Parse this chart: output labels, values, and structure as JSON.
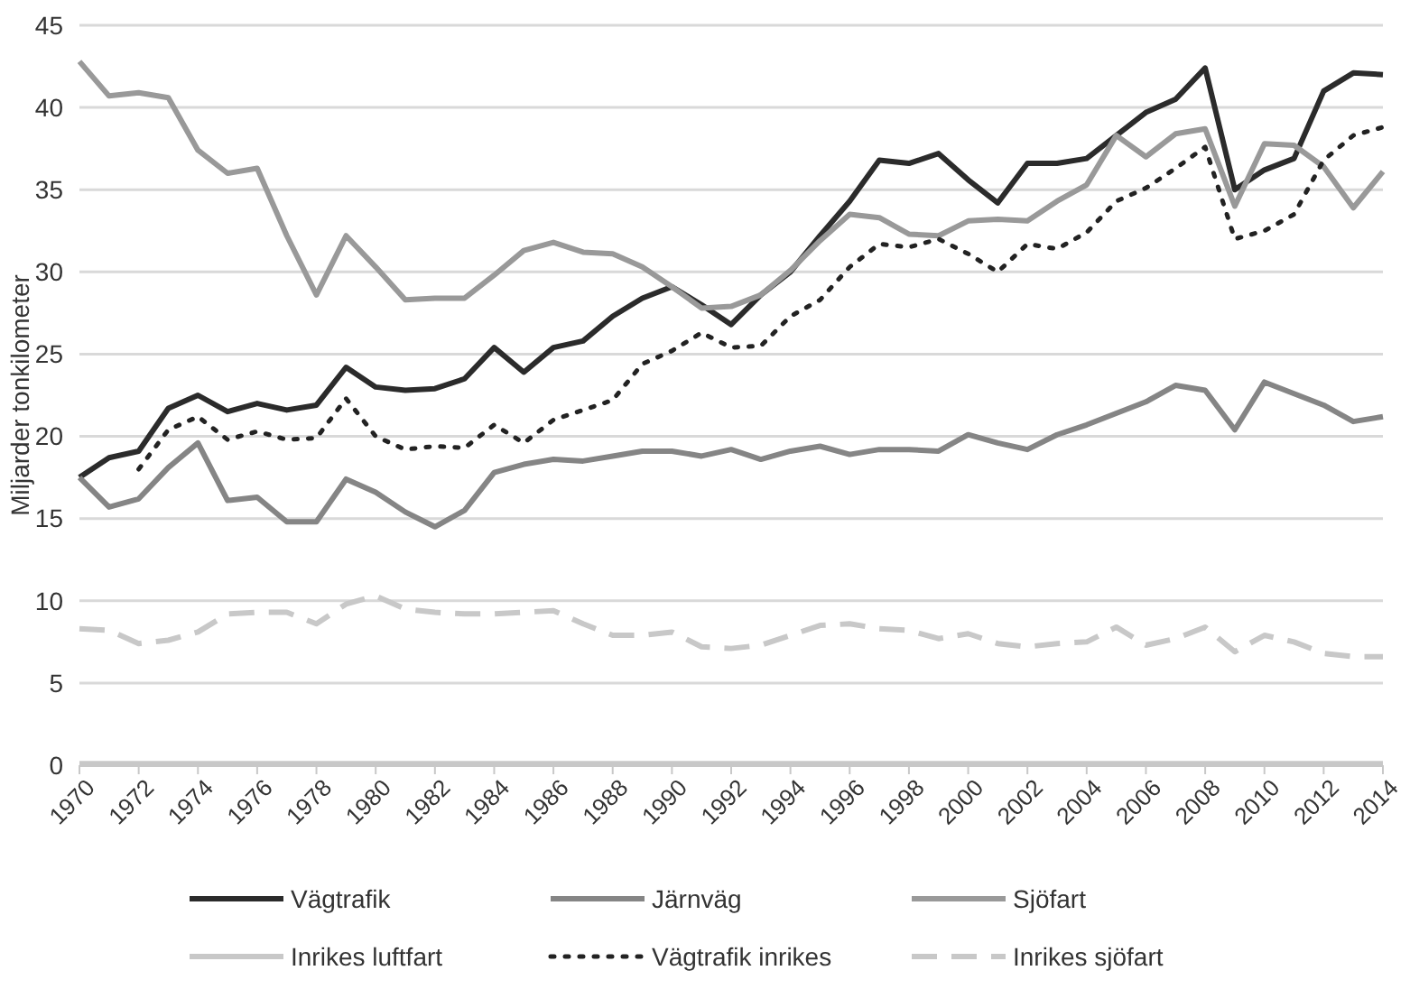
{
  "chart_data": {
    "type": "line",
    "ylabel": "Miljarder tonkilometer",
    "x": [
      1970,
      1971,
      1972,
      1973,
      1974,
      1975,
      1976,
      1977,
      1978,
      1979,
      1980,
      1981,
      1982,
      1983,
      1984,
      1985,
      1986,
      1987,
      1988,
      1989,
      1990,
      1991,
      1992,
      1993,
      1994,
      1995,
      1996,
      1997,
      1998,
      1999,
      2000,
      2001,
      2002,
      2003,
      2004,
      2005,
      2006,
      2007,
      2008,
      2009,
      2010,
      2011,
      2012,
      2013,
      2014
    ],
    "xlim": [
      1970,
      2014
    ],
    "xticks": [
      1970,
      1972,
      1974,
      1976,
      1978,
      1980,
      1982,
      1984,
      1986,
      1988,
      1990,
      1992,
      1994,
      1996,
      1998,
      2000,
      2002,
      2004,
      2006,
      2008,
      2010,
      2012,
      2014
    ],
    "ylim": [
      0,
      45
    ],
    "yticks": [
      0,
      5,
      10,
      15,
      20,
      25,
      30,
      35,
      40,
      45
    ],
    "grid": "y",
    "legend": "bottom",
    "marker": "none",
    "series": [
      {
        "name": "Vägtrafik",
        "color": "#2b2b2b",
        "line_style": "solid",
        "values": [
          17.5,
          18.7,
          19.1,
          21.7,
          22.5,
          21.5,
          22.0,
          21.6,
          21.9,
          24.2,
          23.0,
          22.8,
          22.9,
          23.5,
          25.4,
          23.9,
          25.4,
          25.8,
          27.3,
          28.4,
          29.1,
          28.0,
          26.8,
          28.6,
          30.0,
          32.2,
          34.3,
          36.8,
          36.6,
          37.2,
          35.6,
          34.2,
          36.6,
          36.6,
          36.9,
          38.3,
          39.7,
          40.5,
          42.4,
          35.0,
          36.2,
          36.9,
          41.0,
          42.1,
          42.0
        ]
      },
      {
        "name": "Järnväg",
        "color": "#858585",
        "line_style": "solid",
        "values": [
          17.5,
          15.7,
          16.2,
          18.1,
          19.6,
          16.1,
          16.3,
          14.8,
          14.8,
          17.4,
          16.6,
          15.4,
          14.5,
          15.5,
          17.8,
          18.3,
          18.6,
          18.5,
          18.8,
          19.1,
          19.1,
          18.8,
          19.2,
          18.6,
          19.1,
          19.4,
          18.9,
          19.2,
          19.2,
          19.1,
          20.1,
          19.6,
          19.2,
          20.1,
          20.7,
          21.4,
          22.1,
          23.1,
          22.8,
          20.4,
          23.3,
          22.6,
          21.9,
          20.9,
          21.2
        ]
      },
      {
        "name": "Sjöfart",
        "color": "#999999",
        "line_style": "solid",
        "values": [
          42.8,
          40.7,
          40.9,
          40.6,
          37.4,
          36.0,
          36.3,
          32.2,
          28.6,
          32.2,
          30.3,
          28.3,
          28.4,
          28.4,
          29.8,
          31.3,
          31.8,
          31.2,
          31.1,
          30.3,
          29.1,
          27.8,
          27.9,
          28.6,
          30.1,
          31.9,
          33.5,
          33.3,
          32.3,
          32.2,
          33.1,
          33.2,
          33.1,
          34.3,
          35.3,
          38.3,
          37.0,
          38.4,
          38.7,
          34.0,
          37.8,
          37.7,
          36.4,
          33.9,
          36.1
        ]
      },
      {
        "name": "Inrikes luftfart",
        "color": "#c8c8c8",
        "line_style": "solid",
        "values": [
          0.1,
          0.1,
          0.1,
          0.1,
          0.1,
          0.1,
          0.1,
          0.1,
          0.1,
          0.1,
          0.1,
          0.1,
          0.1,
          0.1,
          0.1,
          0.1,
          0.1,
          0.1,
          0.1,
          0.1,
          0.1,
          0.1,
          0.1,
          0.1,
          0.1,
          0.1,
          0.1,
          0.1,
          0.1,
          0.1,
          0.1,
          0.1,
          0.1,
          0.1,
          0.1,
          0.1,
          0.1,
          0.1,
          0.1,
          0.1,
          0.1,
          0.1,
          0.1,
          0.1,
          0.1
        ]
      },
      {
        "name": "Vägtrafik inrikes",
        "color": "#222222",
        "line_style": "dotted",
        "values": [
          null,
          null,
          18.0,
          20.4,
          21.2,
          19.8,
          20.3,
          19.8,
          19.9,
          22.3,
          20.0,
          19.2,
          19.4,
          19.3,
          20.7,
          19.6,
          21.0,
          21.6,
          22.2,
          24.4,
          25.2,
          26.3,
          25.4,
          25.5,
          27.3,
          28.3,
          30.3,
          31.7,
          31.5,
          32.0,
          31.1,
          30.0,
          31.7,
          31.4,
          32.4,
          34.3,
          35.1,
          36.3,
          37.6,
          32.0,
          32.5,
          33.5,
          36.8,
          38.3,
          38.8
        ]
      },
      {
        "name": "Inrikes sjöfart",
        "color": "#c8c8c8",
        "line_style": "dashed",
        "values": [
          8.3,
          8.2,
          7.4,
          7.6,
          8.1,
          9.2,
          9.3,
          9.3,
          8.6,
          9.8,
          10.3,
          9.5,
          9.3,
          9.2,
          9.2,
          9.3,
          9.4,
          8.6,
          7.9,
          7.9,
          8.1,
          7.2,
          7.1,
          7.3,
          7.9,
          8.5,
          8.6,
          8.3,
          8.2,
          7.7,
          8.0,
          7.4,
          7.2,
          7.4,
          7.5,
          8.4,
          7.3,
          7.7,
          8.4,
          6.9,
          7.9,
          7.5,
          6.8,
          6.6,
          6.6
        ]
      }
    ]
  }
}
